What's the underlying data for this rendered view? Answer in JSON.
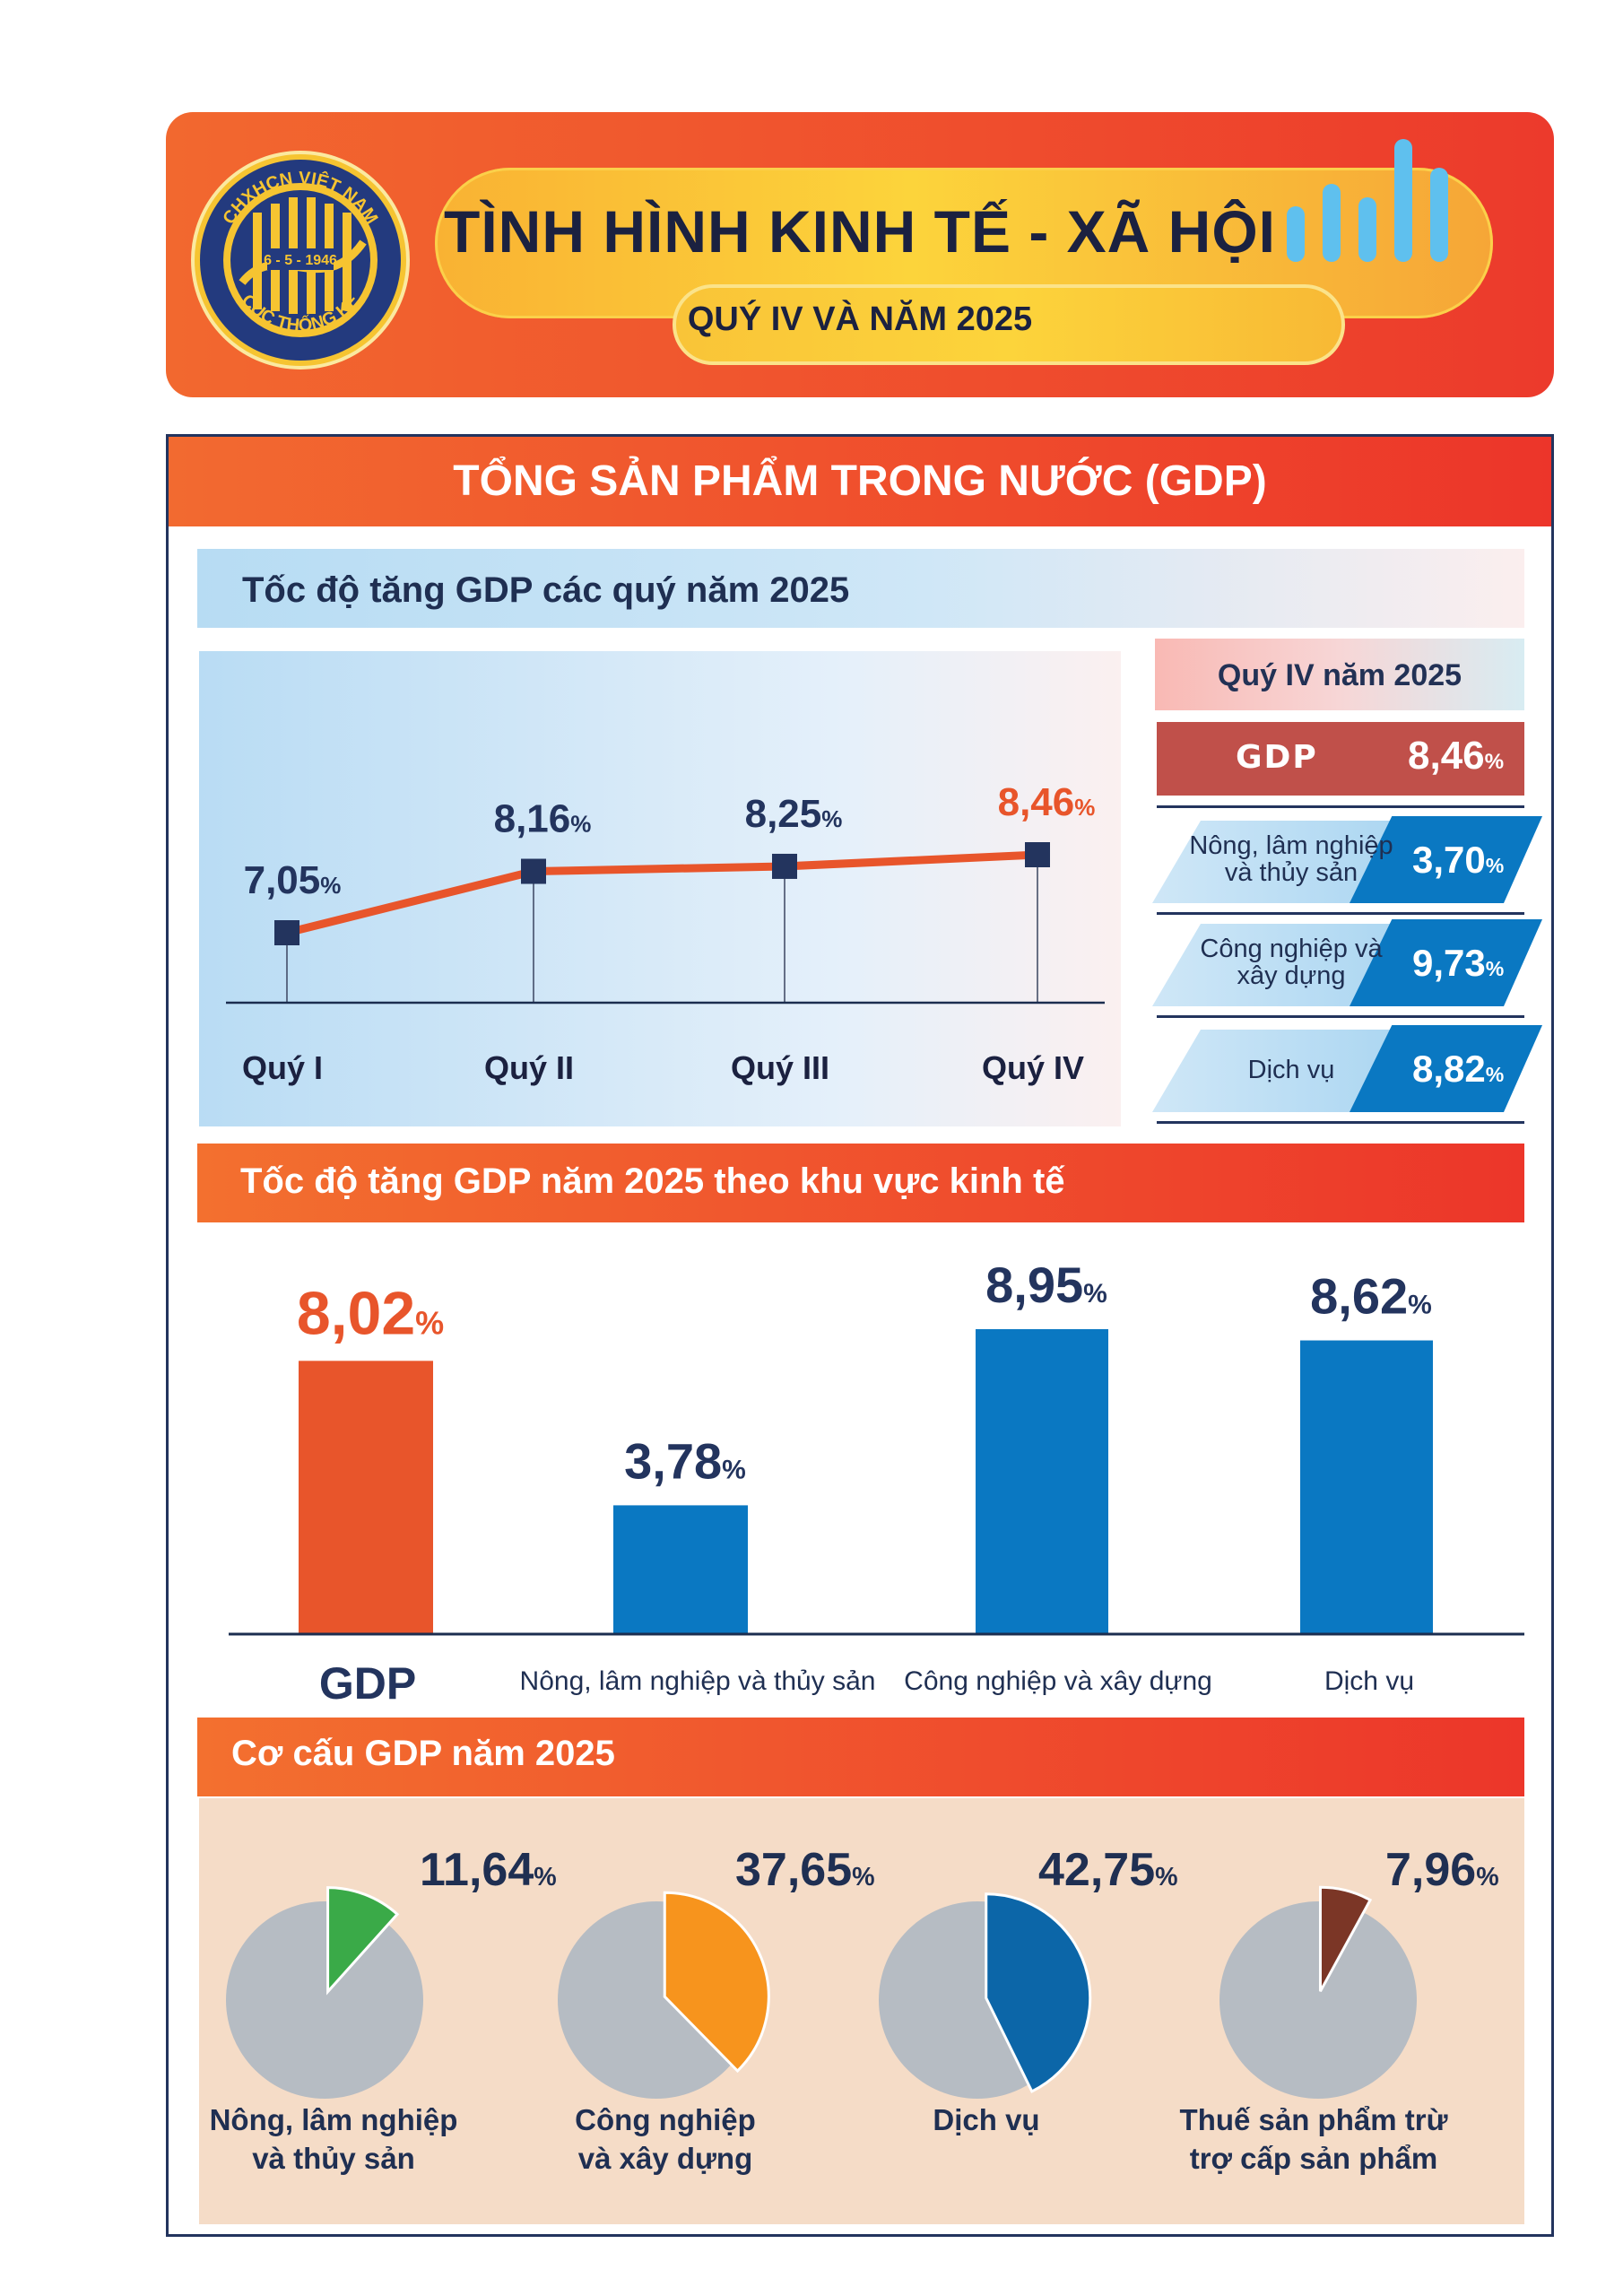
{
  "header": {
    "title": "TÌNH HÌNH KINH TẾ - XÃ HỘI",
    "subtitle": "QUÝ IV VÀ NĂM 2025",
    "logo": {
      "top_text": "CHXHCN VIỆT NAM",
      "date_text": "6 - 5 - 1946",
      "bottom_text": "CỤC THỐNG KÊ"
    }
  },
  "panel": {
    "title": "TỔNG SẢN PHẨM TRONG NƯỚC (GDP)"
  },
  "section1": {
    "title": "Tốc độ tăng GDP các quý năm 2025",
    "q4_box": {
      "heading": "Quý IV năm 2025",
      "gdp_label": "GDP",
      "gdp_value": "8,46",
      "sectors": [
        {
          "label_line1": "Nông, lâm nghiệp",
          "label_line2": "và thủy sản",
          "value": "3,70"
        },
        {
          "label_line1": "Công nghiệp và",
          "label_line2": "xây dựng",
          "value": "9,73"
        },
        {
          "label_line1": "Dịch vụ",
          "label_line2": "",
          "value": "8,82"
        }
      ]
    }
  },
  "section2": {
    "title": "Tốc độ tăng GDP năm 2025 theo khu vực kinh tế"
  },
  "section3": {
    "title": "Cơ cấu GDP năm 2025"
  },
  "percent_sign": "%",
  "colors": {
    "orange_red": "#e8552b",
    "blue": "#0a78c2",
    "navy": "#23345e",
    "pie_grey": "#b6bcc3",
    "green": "#3aaa48",
    "orange": "#f7941d",
    "dark_blue": "#0c66a8",
    "brown": "#7b3626"
  },
  "chart_data": [
    {
      "type": "line",
      "categories": [
        "Quý I",
        "Quý II",
        "Quý III",
        "Quý IV"
      ],
      "values": [
        7.05,
        8.16,
        8.25,
        8.46
      ],
      "labels": [
        "7,05",
        "8,16",
        "8,25",
        "8,46"
      ],
      "highlight_index": 3
    },
    {
      "type": "bar",
      "categories": [
        "GDP",
        "Nông, lâm nghiệp và thủy sản",
        "Công nghiệp và xây dựng",
        "Dịch vụ"
      ],
      "values": [
        8.02,
        3.78,
        8.95,
        8.62
      ],
      "labels": [
        "8,02",
        "3,78",
        "8,95",
        "8,62"
      ],
      "highlight_index": 0
    },
    {
      "type": "pie",
      "charts": [
        {
          "label_line1": "Nông, lâm nghiệp",
          "label_line2": "và thủy sản",
          "value": 11.64,
          "display": "11,64",
          "color": "#3aaa48"
        },
        {
          "label_line1": "Công nghiệp",
          "label_line2": "và xây dựng",
          "value": 37.65,
          "display": "37,65",
          "color": "#f7941d"
        },
        {
          "label_line1": "Dịch vụ",
          "label_line2": "",
          "value": 42.75,
          "display": "42,75",
          "color": "#0c66a8"
        },
        {
          "label_line1": "Thuế sản phẩm trừ",
          "label_line2": "trợ cấp sản phẩm",
          "value": 7.96,
          "display": "7,96",
          "color": "#7b3626"
        }
      ]
    }
  ]
}
